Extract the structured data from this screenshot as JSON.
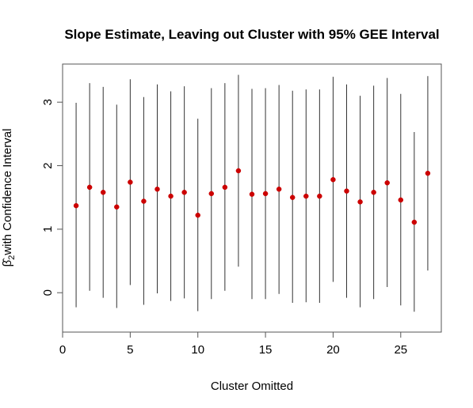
{
  "chart_data": {
    "type": "scatter",
    "title": "Slope Estimate, Leaving out Cluster with 95% GEE Interval",
    "xlabel": "Cluster Omitted",
    "ylabel_symbol": "β̂",
    "ylabel_subscript": "2",
    "ylabel_text": "with Confidence Interval",
    "xlim": [
      0,
      28
    ],
    "ylim": [
      -0.62,
      3.6
    ],
    "xticks": [
      0,
      5,
      10,
      15,
      20,
      25
    ],
    "yticks": [
      0,
      1,
      2,
      3
    ],
    "x_tick_labels": [
      "0",
      "5",
      "10",
      "15",
      "20",
      "25"
    ],
    "y_tick_labels": [
      "0",
      "1",
      "2",
      "3"
    ],
    "grid": false,
    "legend": "none",
    "point_color": "#cc0000",
    "interval_color": "#333333",
    "points": [
      {
        "x": 1,
        "estimate": 1.37,
        "lower": -0.23,
        "upper": 2.99
      },
      {
        "x": 2,
        "estimate": 1.66,
        "lower": 0.03,
        "upper": 3.3
      },
      {
        "x": 3,
        "estimate": 1.58,
        "lower": -0.08,
        "upper": 3.24
      },
      {
        "x": 4,
        "estimate": 1.35,
        "lower": -0.24,
        "upper": 2.96
      },
      {
        "x": 5,
        "estimate": 1.74,
        "lower": 0.12,
        "upper": 3.36
      },
      {
        "x": 6,
        "estimate": 1.44,
        "lower": -0.19,
        "upper": 3.08
      },
      {
        "x": 7,
        "estimate": 1.63,
        "lower": -0.01,
        "upper": 3.28
      },
      {
        "x": 8,
        "estimate": 1.52,
        "lower": -0.13,
        "upper": 3.17
      },
      {
        "x": 9,
        "estimate": 1.58,
        "lower": -0.09,
        "upper": 3.25
      },
      {
        "x": 10,
        "estimate": 1.22,
        "lower": -0.29,
        "upper": 2.74
      },
      {
        "x": 11,
        "estimate": 1.56,
        "lower": -0.1,
        "upper": 3.22
      },
      {
        "x": 12,
        "estimate": 1.66,
        "lower": 0.03,
        "upper": 3.3
      },
      {
        "x": 13,
        "estimate": 1.92,
        "lower": 0.41,
        "upper": 3.43
      },
      {
        "x": 14,
        "estimate": 1.55,
        "lower": -0.1,
        "upper": 3.21
      },
      {
        "x": 15,
        "estimate": 1.56,
        "lower": -0.1,
        "upper": 3.22
      },
      {
        "x": 16,
        "estimate": 1.63,
        "lower": -0.02,
        "upper": 3.27
      },
      {
        "x": 17,
        "estimate": 1.5,
        "lower": -0.16,
        "upper": 3.18
      },
      {
        "x": 18,
        "estimate": 1.52,
        "lower": -0.15,
        "upper": 3.2
      },
      {
        "x": 19,
        "estimate": 1.52,
        "lower": -0.16,
        "upper": 3.2
      },
      {
        "x": 20,
        "estimate": 1.78,
        "lower": 0.17,
        "upper": 3.4
      },
      {
        "x": 21,
        "estimate": 1.6,
        "lower": -0.08,
        "upper": 3.28
      },
      {
        "x": 22,
        "estimate": 1.43,
        "lower": -0.23,
        "upper": 3.1
      },
      {
        "x": 23,
        "estimate": 1.58,
        "lower": -0.1,
        "upper": 3.26
      },
      {
        "x": 24,
        "estimate": 1.73,
        "lower": 0.09,
        "upper": 3.38
      },
      {
        "x": 25,
        "estimate": 1.46,
        "lower": -0.2,
        "upper": 3.13
      },
      {
        "x": 26,
        "estimate": 1.11,
        "lower": -0.3,
        "upper": 2.53
      },
      {
        "x": 27,
        "estimate": 1.88,
        "lower": 0.35,
        "upper": 3.41
      }
    ]
  }
}
